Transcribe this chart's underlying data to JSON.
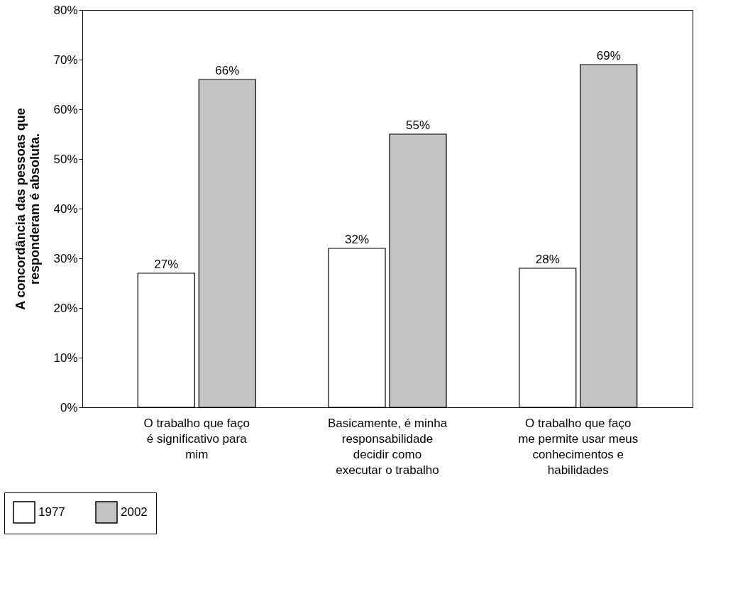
{
  "chart_data": {
    "type": "bar",
    "ylabel": "A concordância das pessoas que responderam é absoluta.",
    "categories": [
      "O trabalho que faço é significativo para mim",
      "Basicamente, é minha responsabilidade decidir como executar o trabalho",
      "O trabalho que faço me permite usar meus conhecimentos e habilidades"
    ],
    "series": [
      {
        "name": "1977",
        "color": "#ffffff",
        "values": [
          27,
          32,
          28
        ],
        "value_labels": [
          "27%",
          "32%",
          "28%"
        ]
      },
      {
        "name": "2002",
        "color": "#c4c4c4",
        "values": [
          66,
          55,
          69
        ],
        "value_labels": [
          "66%",
          "55%",
          "69%"
        ]
      }
    ],
    "ylim": [
      0,
      80
    ],
    "yticks": [
      {
        "value": 0,
        "label": "0%"
      },
      {
        "value": 10,
        "label": "10%"
      },
      {
        "value": 20,
        "label": "20%"
      },
      {
        "value": 30,
        "label": "30%"
      },
      {
        "value": 40,
        "label": "40%"
      },
      {
        "value": 50,
        "label": "50%"
      },
      {
        "value": 60,
        "label": "60%"
      },
      {
        "value": 70,
        "label": "70%"
      },
      {
        "value": 80,
        "label": "80%"
      }
    ],
    "grid": false,
    "legend": "bottom left"
  }
}
